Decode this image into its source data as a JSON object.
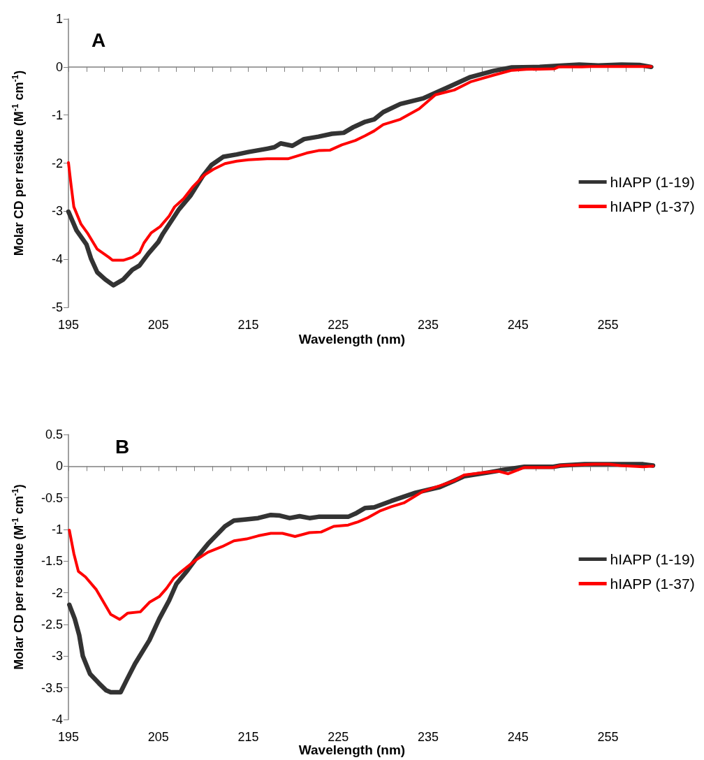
{
  "chart_data": [
    {
      "type": "line",
      "title": "A",
      "xlabel": "Wavelength (nm)",
      "ylabel": "Molar CD per residue (M$^{-1}$ cm$^{-1}$)",
      "legend": "right",
      "marker": "none",
      "line_style": "solid",
      "xlim": [
        195,
        260
      ],
      "ylim": [
        -5,
        1
      ],
      "yticks": [
        1,
        0,
        -1,
        -2,
        -3,
        -4,
        -5
      ],
      "xticks": [
        195,
        {
          "value": 197,
          "label": null
        },
        {
          "value": 199,
          "label": null
        },
        {
          "value": 201,
          "label": null
        },
        {
          "value": 203,
          "label": null
        },
        205,
        {
          "value": 207,
          "label": null
        },
        {
          "value": 209,
          "label": null
        },
        {
          "value": 211,
          "label": null
        },
        {
          "value": 213,
          "label": null
        },
        215,
        {
          "value": 217,
          "label": null
        },
        {
          "value": 219,
          "label": null
        },
        {
          "value": 221,
          "label": null
        },
        {
          "value": 223,
          "label": null
        },
        225,
        {
          "value": 227,
          "label": null
        },
        {
          "value": 229,
          "label": null
        },
        {
          "value": 231,
          "label": null
        },
        {
          "value": 233,
          "label": null
        },
        235,
        {
          "value": 237,
          "label": null
        },
        {
          "value": 239,
          "label": null
        },
        {
          "value": 241,
          "label": null
        },
        {
          "value": 243,
          "label": null
        },
        245,
        {
          "value": 247,
          "label": null
        },
        {
          "value": 249,
          "label": null
        },
        {
          "value": 251,
          "label": null
        },
        {
          "value": 253,
          "label": null
        },
        255,
        {
          "value": 257,
          "label": null
        },
        {
          "value": 259,
          "label": null
        }
      ],
      "series": [
        {
          "name": "hIAPP (1-19)",
          "color": "#333333",
          "x": [
            195,
            195.9,
            197,
            197.5,
            198.2,
            199.1,
            200,
            201.1,
            202.1,
            202.9,
            203.9,
            205,
            205.5,
            207.3,
            208.6,
            209.9,
            210.9,
            212.2,
            213.7,
            215,
            217.1,
            217.9,
            218.6,
            219.9,
            221.2,
            222.8,
            224.3,
            225.6,
            226.7,
            228,
            229,
            230,
            231.9,
            234.5,
            237.1,
            239.7,
            242.3,
            244.3,
            247.4,
            250,
            251.8,
            253.9,
            256.5,
            258.5,
            259.8
          ],
          "values": [
            -3.01,
            -3.4,
            -3.69,
            -3.98,
            -4.27,
            -4.42,
            -4.54,
            -4.42,
            -4.22,
            -4.13,
            -3.88,
            -3.64,
            -3.47,
            -2.96,
            -2.67,
            -2.28,
            -2.04,
            -1.87,
            -1.82,
            -1.77,
            -1.7,
            -1.67,
            -1.59,
            -1.64,
            -1.5,
            -1.45,
            -1.39,
            -1.37,
            -1.25,
            -1.14,
            -1.09,
            -0.94,
            -0.77,
            -0.65,
            -0.43,
            -0.21,
            -0.08,
            -0.01,
            0,
            0.03,
            0.05,
            0.03,
            0.05,
            0.04,
            0
          ]
        },
        {
          "name": "hIAPP (1-37)",
          "color": "#ff0000",
          "x": [
            195,
            195.3,
            195.6,
            196.4,
            197.1,
            198.2,
            199.5,
            199.9,
            201.1,
            202.1,
            202.9,
            203.4,
            204.2,
            205.2,
            206.2,
            206.8,
            207.8,
            208.8,
            210.1,
            211.1,
            212.4,
            213.7,
            215,
            217.1,
            219.4,
            221.5,
            222.8,
            224.1,
            225.4,
            226.9,
            228,
            229,
            230,
            231.9,
            234,
            235.8,
            237.9,
            239.7,
            242.3,
            244.3,
            245.9,
            249,
            249.5,
            252.1,
            253.1,
            259.8
          ],
          "values": [
            -1.99,
            -2.47,
            -2.91,
            -3.27,
            -3.45,
            -3.79,
            -3.96,
            -4.02,
            -4.02,
            -3.96,
            -3.86,
            -3.66,
            -3.45,
            -3.32,
            -3.1,
            -2.91,
            -2.74,
            -2.5,
            -2.25,
            -2.13,
            -2.01,
            -1.96,
            -1.93,
            -1.91,
            -1.91,
            -1.79,
            -1.74,
            -1.73,
            -1.62,
            -1.53,
            -1.43,
            -1.33,
            -1.2,
            -1.09,
            -0.87,
            -0.58,
            -0.48,
            -0.31,
            -0.17,
            -0.07,
            -0.05,
            -0.04,
            0,
            0,
            0.01,
            0.01
          ]
        }
      ]
    },
    {
      "type": "line",
      "title": "B",
      "xlabel": "Wavelength (nm)",
      "ylabel": "Molar CD per residue (M$^{-1}$ cm$^{-1}$)",
      "legend": "right",
      "marker": "none",
      "line_style": "solid",
      "xlim": [
        195,
        260
      ],
      "ylim": [
        -4,
        0.5
      ],
      "yticks": [
        0.5,
        0,
        -0.5,
        -1,
        -1.5,
        -2,
        -2.5,
        -3,
        -3.5,
        -4
      ],
      "xticks": [
        195,
        {
          "value": 197,
          "label": null
        },
        {
          "value": 199,
          "label": null
        },
        {
          "value": 201,
          "label": null
        },
        {
          "value": 203,
          "label": null
        },
        205,
        {
          "value": 207,
          "label": null
        },
        {
          "value": 209,
          "label": null
        },
        {
          "value": 211,
          "label": null
        },
        {
          "value": 213,
          "label": null
        },
        215,
        {
          "value": 217,
          "label": null
        },
        {
          "value": 219,
          "label": null
        },
        {
          "value": 221,
          "label": null
        },
        {
          "value": 223,
          "label": null
        },
        225,
        {
          "value": 227,
          "label": null
        },
        {
          "value": 229,
          "label": null
        },
        {
          "value": 231,
          "label": null
        },
        {
          "value": 233,
          "label": null
        },
        235,
        {
          "value": 237,
          "label": null
        },
        {
          "value": 239,
          "label": null
        },
        {
          "value": 241,
          "label": null
        },
        {
          "value": 243,
          "label": null
        },
        245,
        {
          "value": 247,
          "label": null
        },
        {
          "value": 249,
          "label": null
        },
        {
          "value": 251,
          "label": null
        },
        {
          "value": 253,
          "label": null
        },
        255,
        {
          "value": 257,
          "label": null
        },
        {
          "value": 259,
          "label": null
        }
      ],
      "series": [
        {
          "name": "hIAPP (1-19)",
          "color": "#333333",
          "x": [
            195.1,
            195.7,
            196.2,
            196.6,
            197.4,
            198.4,
            199.2,
            199.7,
            200.8,
            201.5,
            202.4,
            204,
            205.1,
            206.2,
            207,
            208.1,
            209.4,
            210.5,
            212.4,
            213.4,
            214.8,
            216.1,
            217.5,
            218.5,
            219.6,
            220.7,
            221.8,
            222.8,
            226.1,
            226.9,
            228,
            229,
            230.9,
            233.6,
            236.3,
            237.9,
            239,
            241.7,
            243.3,
            245.7,
            248.9,
            249.7,
            252.4,
            255.1,
            258.9,
            260
          ],
          "values": [
            -2.19,
            -2.41,
            -2.67,
            -3,
            -3.28,
            -3.43,
            -3.54,
            -3.57,
            -3.57,
            -3.37,
            -3.12,
            -2.75,
            -2.41,
            -2.12,
            -1.86,
            -1.67,
            -1.42,
            -1.23,
            -0.95,
            -0.86,
            -0.84,
            -0.82,
            -0.77,
            -0.78,
            -0.82,
            -0.79,
            -0.82,
            -0.8,
            -0.8,
            -0.75,
            -0.66,
            -0.65,
            -0.55,
            -0.42,
            -0.33,
            -0.23,
            -0.16,
            -0.1,
            -0.06,
            -0.01,
            -0.01,
            0.01,
            0.03,
            0.03,
            0.03,
            0.01
          ]
        },
        {
          "name": "hIAPP (1-37)",
          "color": "#ff0000",
          "x": [
            195.1,
            195.6,
            196.1,
            196.9,
            198.1,
            199.7,
            200.7,
            201.6,
            203,
            204,
            205.1,
            205.9,
            206.7,
            207.5,
            209.1,
            210.5,
            212.1,
            213.4,
            214.8,
            216.1,
            217.5,
            218.8,
            220.2,
            221.8,
            223.1,
            224.5,
            226.1,
            227.2,
            228.2,
            229.6,
            230.9,
            232.3,
            234.4,
            236.3,
            237.9,
            239,
            241.2,
            242.8,
            243.9,
            245.7,
            248.9,
            249.7,
            253.5,
            255.1,
            256.4,
            258.9,
            260
          ],
          "values": [
            -1.01,
            -1.38,
            -1.66,
            -1.75,
            -1.95,
            -2.34,
            -2.42,
            -2.32,
            -2.3,
            -2.15,
            -2.06,
            -1.93,
            -1.77,
            -1.67,
            -1.49,
            -1.36,
            -1.27,
            -1.18,
            -1.15,
            -1.1,
            -1.06,
            -1.06,
            -1.11,
            -1.05,
            -1.04,
            -0.95,
            -0.93,
            -0.88,
            -0.82,
            -0.71,
            -0.64,
            -0.58,
            -0.4,
            -0.31,
            -0.23,
            -0.14,
            -0.1,
            -0.08,
            -0.12,
            -0.02,
            -0.02,
            0.01,
            0.03,
            0.03,
            0.01,
            -0.01,
            0
          ]
        }
      ]
    }
  ]
}
